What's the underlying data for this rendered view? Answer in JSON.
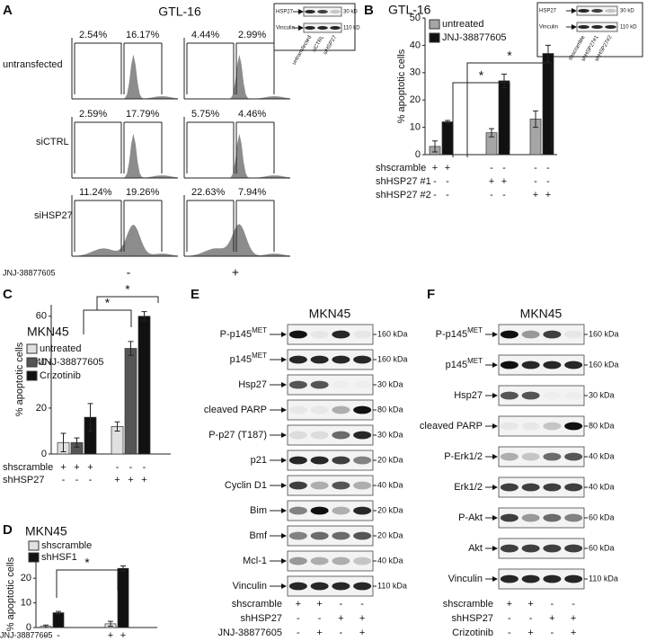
{
  "panel_a": {
    "label": "A",
    "title": "GTL-16",
    "rows": [
      {
        "label": "untransfected",
        "percentages": [
          [
            "2.54%",
            "16.17%"
          ],
          [
            "4.44%",
            "2.99%"
          ]
        ]
      },
      {
        "label": "siCTRL",
        "percentages": [
          [
            "2.59%",
            "17.79%"
          ],
          [
            "5.75%",
            "4.46%"
          ]
        ]
      },
      {
        "label": "siHSP27",
        "percentages": [
          [
            "11.24%",
            "19.26%"
          ],
          [
            "22.63%",
            "7.94%"
          ]
        ]
      }
    ],
    "treatment": {
      "label": "JNJ-38877605",
      "signs": [
        "-",
        "+"
      ]
    },
    "inset": {
      "bands": [
        "HSP27",
        "Vinculin"
      ],
      "sizes": [
        "30 kD",
        "110 kD"
      ],
      "lanes": [
        "untransfected",
        "siCTRL",
        "siHSP27"
      ]
    }
  },
  "panel_b_inset": {
    "bands": [
      "HSP27",
      "Vinculin"
    ],
    "sizes": [
      "30 kD",
      "110 kD"
    ],
    "lanes": [
      "shscramble",
      "shHSP27#1",
      "shHSP27#2"
    ]
  },
  "chart_data": [
    {
      "type": "bar",
      "panel": "B",
      "title": "GTL-16",
      "y_label": "% apoptotic cells",
      "ylim": [
        0,
        50
      ],
      "yticks": [
        0,
        10,
        20,
        30,
        40,
        50
      ],
      "series": [
        {
          "name": "untreated",
          "color": "#a6a6a6",
          "values": [
            3,
            8,
            13
          ],
          "errors": [
            2,
            1.5,
            3
          ]
        },
        {
          "name": "JNJ-38877605",
          "color": "#111111",
          "values": [
            12,
            27,
            37
          ],
          "errors": [
            0.5,
            2.5,
            3
          ]
        }
      ],
      "conditions": [
        {
          "label": "shscramble",
          "signs": [
            "+",
            "+",
            "-",
            "-",
            "-",
            "-"
          ]
        },
        {
          "label": "shHSP27 #1",
          "signs": [
            "-",
            "-",
            "+",
            "+",
            "-",
            "-"
          ]
        },
        {
          "label": "shHSP27 #2",
          "signs": [
            "-",
            "-",
            "-",
            "-",
            "+",
            "+"
          ]
        }
      ],
      "annotations": [
        "*",
        "*"
      ]
    },
    {
      "type": "bar",
      "panel": "C",
      "title": "MKN45",
      "y_label": "% apoptotic cells",
      "ylim": [
        0,
        65
      ],
      "yticks": [
        0,
        20,
        40,
        60
      ],
      "series": [
        {
          "name": "untreated",
          "color": "#e0e0e0",
          "values": [
            5,
            12
          ],
          "errors": [
            4,
            2
          ]
        },
        {
          "name": "JNJ-38877605",
          "color": "#555555",
          "values": [
            5,
            46
          ],
          "errors": [
            2,
            3
          ]
        },
        {
          "name": "Crizotinib",
          "color": "#111111",
          "values": [
            16,
            60
          ],
          "errors": [
            6,
            2
          ]
        }
      ],
      "conditions": [
        {
          "label": "shscramble",
          "signs": [
            "+",
            "+",
            "+",
            "-",
            "-",
            "-"
          ]
        },
        {
          "label": "shHSP27",
          "signs": [
            "-",
            "-",
            "-",
            "+",
            "+",
            "+"
          ]
        }
      ],
      "annotations": [
        "*",
        "*"
      ]
    },
    {
      "type": "bar",
      "panel": "D",
      "title": "MKN45",
      "y_label": "% apoptotic cells",
      "ylim": [
        0,
        27
      ],
      "yticks": [
        0,
        10,
        20
      ],
      "series": [
        {
          "name": "shscramble",
          "color": "#e0e0e0",
          "values": [
            0.5,
            1.5
          ],
          "errors": [
            0.5,
            1
          ]
        },
        {
          "name": "shHSF1",
          "color": "#111111",
          "values": [
            6,
            24
          ],
          "errors": [
            0.5,
            1
          ]
        }
      ],
      "conditions": [
        {
          "label": "JNJ-38877605",
          "signs": [
            "-",
            "-",
            "+",
            "+"
          ]
        }
      ],
      "annotations": [
        "*"
      ]
    }
  ],
  "panel_e": {
    "label": "E",
    "title": "MKN45",
    "rows": [
      {
        "name": "P-p145",
        "sup": "MET",
        "size": "160 kDa"
      },
      {
        "name": "p145",
        "sup": "MET",
        "size": "160 kDa"
      },
      {
        "name": "Hsp27",
        "size": "30 kDa"
      },
      {
        "name": "cleaved PARP",
        "size": "80 kDa"
      },
      {
        "name": "P-p27 (T187)",
        "size": "30 kDa"
      },
      {
        "name": "p21",
        "size": "20 kDa"
      },
      {
        "name": "Cyclin D1",
        "size": "40 kDa"
      },
      {
        "name": "Bim",
        "size": "20 kDa"
      },
      {
        "name": "Bmf",
        "size": "20 kDa"
      },
      {
        "name": "Mcl-1",
        "size": "40 kDa"
      },
      {
        "name": "Vinculin",
        "size": "110 kDa"
      }
    ],
    "conditions": [
      {
        "label": "shscramble",
        "signs": [
          "+",
          "+",
          "-",
          "-"
        ]
      },
      {
        "label": "shHSP27",
        "signs": [
          "-",
          "-",
          "+",
          "+"
        ]
      },
      {
        "label": "JNJ-38877605",
        "signs": [
          "-",
          "+",
          "-",
          "+"
        ]
      }
    ]
  },
  "panel_f": {
    "label": "F",
    "title": "MKN45",
    "rows": [
      {
        "name": "P-p145",
        "sup": "MET",
        "size": "160 kDa"
      },
      {
        "name": "p145",
        "sup": "MET",
        "size": "160 kDa"
      },
      {
        "name": "Hsp27",
        "size": "30 kDa"
      },
      {
        "name": "cleaved PARP",
        "size": "80 kDa"
      },
      {
        "name": "P-Erk1/2",
        "size": "40 kDa"
      },
      {
        "name": "Erk1/2",
        "size": "40 kDa"
      },
      {
        "name": "P-Akt",
        "size": "60 kDa"
      },
      {
        "name": "Akt",
        "size": "60 kDa"
      },
      {
        "name": "Vinculin",
        "size": "110 kDa"
      }
    ],
    "conditions": [
      {
        "label": "shscramble",
        "signs": [
          "+",
          "+",
          "-",
          "-"
        ]
      },
      {
        "label": "shHSP27",
        "signs": [
          "-",
          "-",
          "+",
          "+"
        ]
      },
      {
        "label": "Crizotinib",
        "signs": [
          "-",
          "+",
          "-",
          "+"
        ]
      }
    ]
  }
}
